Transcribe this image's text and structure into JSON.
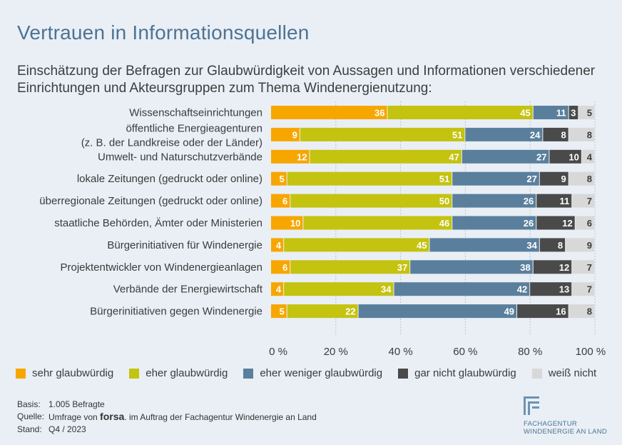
{
  "title": "Vertrauen in Informationsquellen",
  "subtitle": "Einschätzung der Befragen zur Glaubwürdigkeit von Aussagen und Informationen verschiedener Einrichtungen und Akteursgruppen zum Thema Windenergienutzung:",
  "colors": {
    "sehr": "#f7a600",
    "eher": "#c4c30f",
    "weniger": "#5a7f9c",
    "garnicht": "#4a4a4a",
    "weissnicht": "#d8d8d8"
  },
  "legend": [
    {
      "key": "sehr",
      "label": "sehr glaubwürdig"
    },
    {
      "key": "eher",
      "label": "eher glaubwürdig"
    },
    {
      "key": "weniger",
      "label": "eher weniger glaubwürdig"
    },
    {
      "key": "garnicht",
      "label": "gar nicht glaubwürdig"
    },
    {
      "key": "weissnicht",
      "label": "weiß nicht"
    }
  ],
  "chart_data": {
    "type": "bar",
    "orientation": "horizontal",
    "stacked": true,
    "xlim": [
      0,
      100
    ],
    "x_ticks": [
      "0 %",
      "20 %",
      "40 %",
      "60 %",
      "80 %",
      "100 %"
    ],
    "categories": [
      [
        "Wissenschaftseinrichtungen"
      ],
      [
        "öffentliche Energieagenturen",
        "(z. B. der Landkreise oder der Länder)"
      ],
      [
        "Umwelt- und Naturschutzverbände"
      ],
      [
        "lokale Zeitungen (gedruckt oder online)"
      ],
      [
        "überregionale Zeitungen (gedruckt oder online)"
      ],
      [
        "staatliche Behörden, Ämter oder Ministerien"
      ],
      [
        "Bürgerinitiativen für Windenergie"
      ],
      [
        "Projektentwickler von Windenergieanlagen"
      ],
      [
        "Verbände der Energiewirtschaft"
      ],
      [
        "Bürgerinitiativen gegen Windenergie"
      ]
    ],
    "series": [
      {
        "key": "sehr",
        "name": "sehr glaubwürdig",
        "values": [
          36,
          9,
          12,
          5,
          6,
          10,
          4,
          6,
          4,
          5
        ]
      },
      {
        "key": "eher",
        "name": "eher glaubwürdig",
        "values": [
          45,
          51,
          47,
          51,
          50,
          46,
          45,
          37,
          34,
          22
        ]
      },
      {
        "key": "weniger",
        "name": "eher weniger glaubwürdig",
        "values": [
          11,
          24,
          27,
          27,
          26,
          26,
          34,
          38,
          42,
          49
        ]
      },
      {
        "key": "garnicht",
        "name": "gar nicht glaubwürdig",
        "values": [
          3,
          8,
          10,
          9,
          11,
          12,
          8,
          12,
          13,
          16
        ]
      },
      {
        "key": "weissnicht",
        "name": "weiß nicht",
        "values": [
          5,
          8,
          4,
          8,
          7,
          6,
          9,
          7,
          7,
          8
        ]
      }
    ]
  },
  "footer": {
    "basis_label": "Basis:",
    "basis_value": "1.005 Befragte",
    "quelle_label": "Quelle:",
    "quelle_prefix": "Umfrage von",
    "quelle_brand": "forsa",
    "quelle_suffix": ". im Auftrag der Fachagentur Windenergie an Land",
    "stand_label": "Stand:",
    "stand_value": "Q4 / 2023"
  },
  "logo": {
    "icon": "fachagentur-logo-icon",
    "line1": "FACHAGENTUR",
    "line2": "WINDENERGIE AN LAND"
  }
}
